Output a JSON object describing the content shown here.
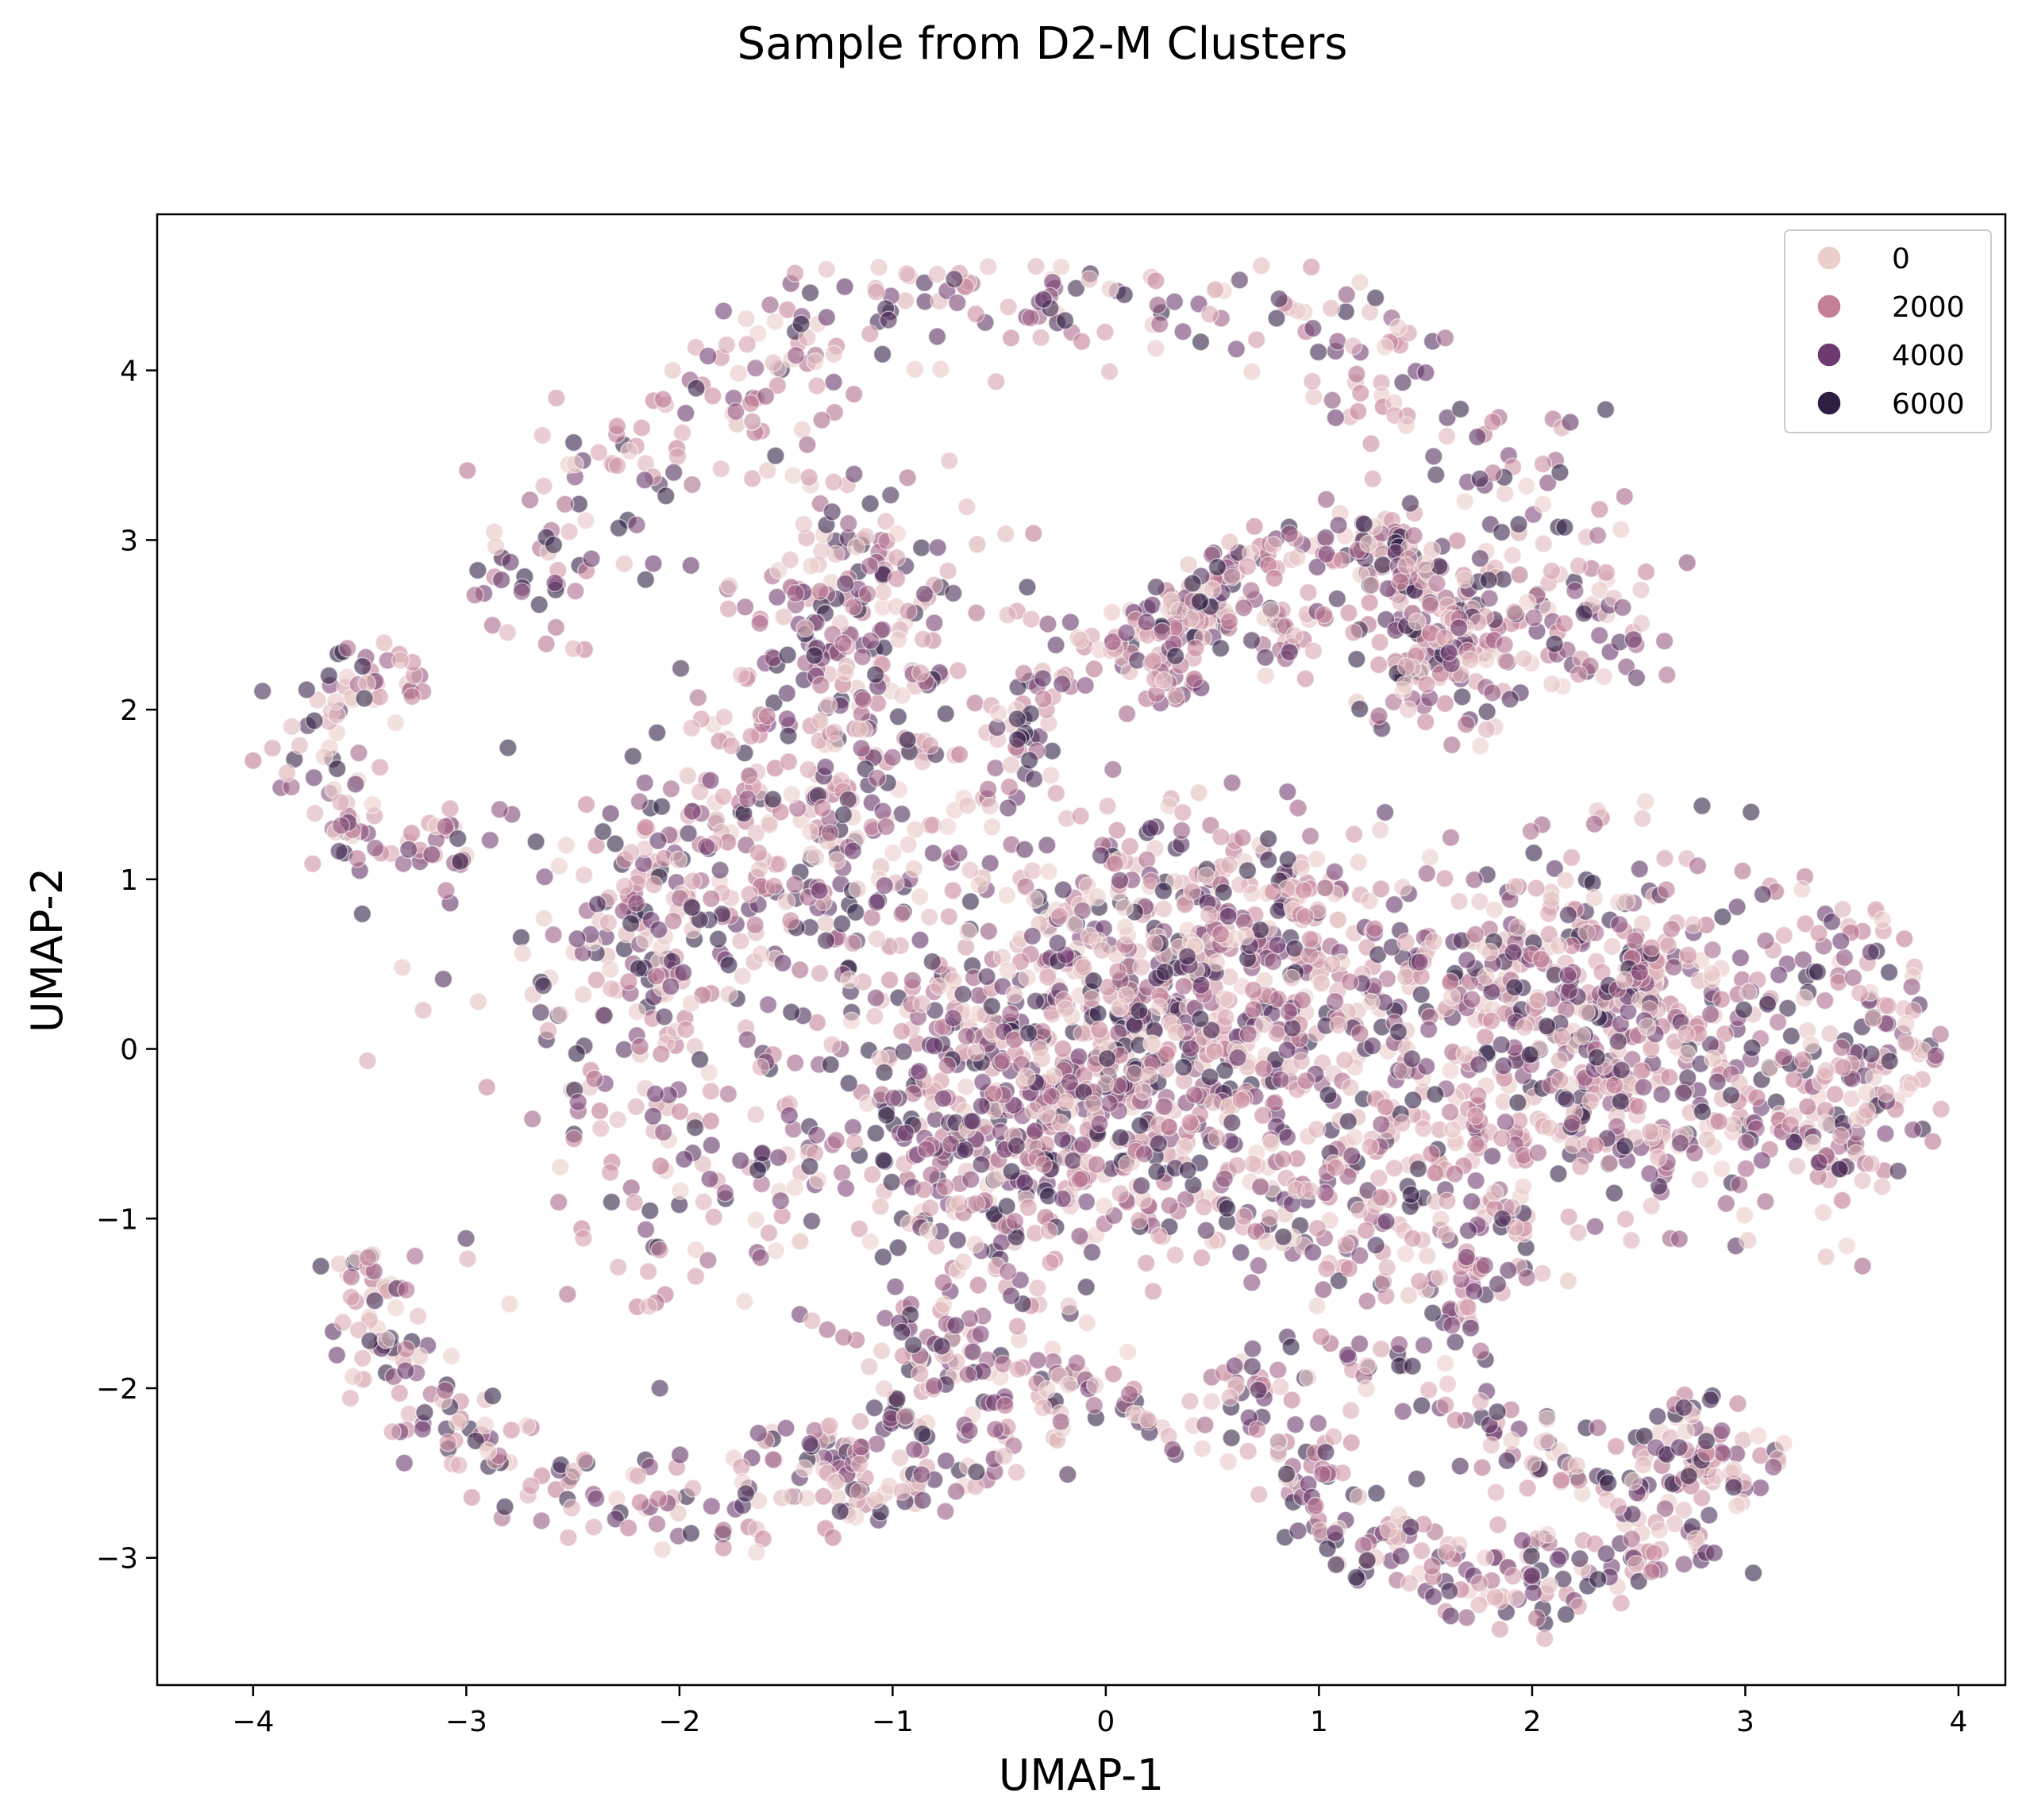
{
  "chart_data": {
    "type": "scatter",
    "title": "Sample from D2-M Clusters",
    "xlabel": "UMAP-1",
    "ylabel": "UMAP-2",
    "xlim": [
      -4.45,
      4.22
    ],
    "ylim": [
      -3.75,
      4.92
    ],
    "x_ticks": [
      {
        "value": -4,
        "label": "−4"
      },
      {
        "value": -3,
        "label": "−3"
      },
      {
        "value": -2,
        "label": "−2"
      },
      {
        "value": -1,
        "label": "−1"
      },
      {
        "value": 0,
        "label": "0"
      },
      {
        "value": 1,
        "label": "1"
      },
      {
        "value": 2,
        "label": "2"
      },
      {
        "value": 3,
        "label": "3"
      },
      {
        "value": 4,
        "label": "4"
      }
    ],
    "y_ticks": [
      {
        "value": -3,
        "label": "−3"
      },
      {
        "value": -2,
        "label": "−2"
      },
      {
        "value": -1,
        "label": "−1"
      },
      {
        "value": 0,
        "label": "0"
      },
      {
        "value": 1,
        "label": "1"
      },
      {
        "value": 2,
        "label": "2"
      },
      {
        "value": 3,
        "label": "3"
      },
      {
        "value": 4,
        "label": "4"
      }
    ],
    "grid": false,
    "hue_range": [
      0,
      7000
    ],
    "point_alpha": 0.6,
    "legend": {
      "placement": "top-right",
      "entries": [
        {
          "label": "0",
          "value": 0,
          "color": "#ebcfcb"
        },
        {
          "label": "2000",
          "value": 2000,
          "color": "#c47e96"
        },
        {
          "label": "4000",
          "value": 4000,
          "color": "#6e3a70"
        },
        {
          "label": "6000",
          "value": 6000,
          "color": "#2e1f42"
        }
      ]
    },
    "clusters": [
      {
        "cx": 0.1,
        "cy": 0.0,
        "sx": 0.55,
        "sy": 0.65,
        "n": 650
      },
      {
        "cx": -0.6,
        "cy": -0.6,
        "sx": 0.4,
        "sy": 0.5,
        "n": 260
      },
      {
        "cx": 0.6,
        "cy": 0.5,
        "sx": 0.5,
        "sy": 0.45,
        "n": 280
      },
      {
        "cx": 2.2,
        "cy": 0.4,
        "sx": 0.55,
        "sy": 0.4,
        "n": 420
      },
      {
        "cx": 2.6,
        "cy": -0.3,
        "sx": 0.6,
        "sy": 0.35,
        "n": 280
      },
      {
        "cx": -1.2,
        "cy": 2.4,
        "sx": 0.3,
        "sy": 0.55,
        "n": 240
      },
      {
        "cx": -1.4,
        "cy": 1.2,
        "sx": 0.45,
        "sy": 0.45,
        "n": 200
      },
      {
        "cx": -2.1,
        "cy": 0.7,
        "sx": 0.45,
        "sy": 0.45,
        "n": 160
      },
      {
        "cx": 1.6,
        "cy": 2.4,
        "sx": 0.3,
        "sy": 0.25,
        "n": 180
      },
      {
        "cx": 1.3,
        "cy": -0.9,
        "sx": 0.55,
        "sy": 0.3,
        "n": 190
      },
      {
        "cx": -2.0,
        "cy": -0.6,
        "sx": 0.4,
        "sy": 0.5,
        "n": 130
      }
    ],
    "arcs": [
      {
        "cx": 1.0,
        "cy": 2.3,
        "r": 0.7,
        "a0": 40,
        "a1": 200,
        "w": 0.1,
        "n": 170
      },
      {
        "cx": 0.5,
        "cy": 1.6,
        "r": 0.95,
        "a0": 60,
        "a1": 190,
        "w": 0.12,
        "n": 140
      },
      {
        "cx": -0.2,
        "cy": 1.9,
        "r": 2.6,
        "a0": 5,
        "a1": 170,
        "w": 0.22,
        "n": 380
      },
      {
        "cx": -3.2,
        "cy": 1.7,
        "r": 0.55,
        "a0": 90,
        "a1": 290,
        "w": 0.14,
        "n": 110
      },
      {
        "cx": -2.0,
        "cy": -1.2,
        "r": 1.5,
        "a0": 180,
        "a1": 330,
        "w": 0.14,
        "n": 220
      },
      {
        "cx": 0.3,
        "cy": -0.2,
        "r": 1.9,
        "a0": 225,
        "a1": 330,
        "w": 0.14,
        "n": 200
      },
      {
        "cx": 1.9,
        "cy": -2.1,
        "r": 1.05,
        "a0": 190,
        "a1": 350,
        "w": 0.14,
        "n": 240
      },
      {
        "cx": 2.3,
        "cy": -2.0,
        "r": 0.55,
        "a0": 180,
        "a1": 360,
        "w": 0.14,
        "n": 90
      },
      {
        "cx": -1.0,
        "cy": -2.2,
        "r": 0.45,
        "a0": 180,
        "a1": 360,
        "w": 0.12,
        "n": 70
      },
      {
        "cx": 2.9,
        "cy": 0.0,
        "r": 0.8,
        "a0": -60,
        "a1": 60,
        "w": 0.15,
        "n": 110
      }
    ],
    "outliers": [
      {
        "x": -4.0,
        "y": 1.7
      },
      {
        "x": -3.3,
        "y": 0.48
      },
      {
        "x": 3.83,
        "y": -0.18
      },
      {
        "x": -0.25,
        "y": 4.52
      },
      {
        "x": 0.9,
        "y": 4.35
      },
      {
        "x": 2.05,
        "y": -3.3
      },
      {
        "x": 1.22,
        "y": -3.08
      },
      {
        "x": -1.28,
        "y": -2.88
      },
      {
        "x": 3.55,
        "y": -1.28
      }
    ]
  }
}
